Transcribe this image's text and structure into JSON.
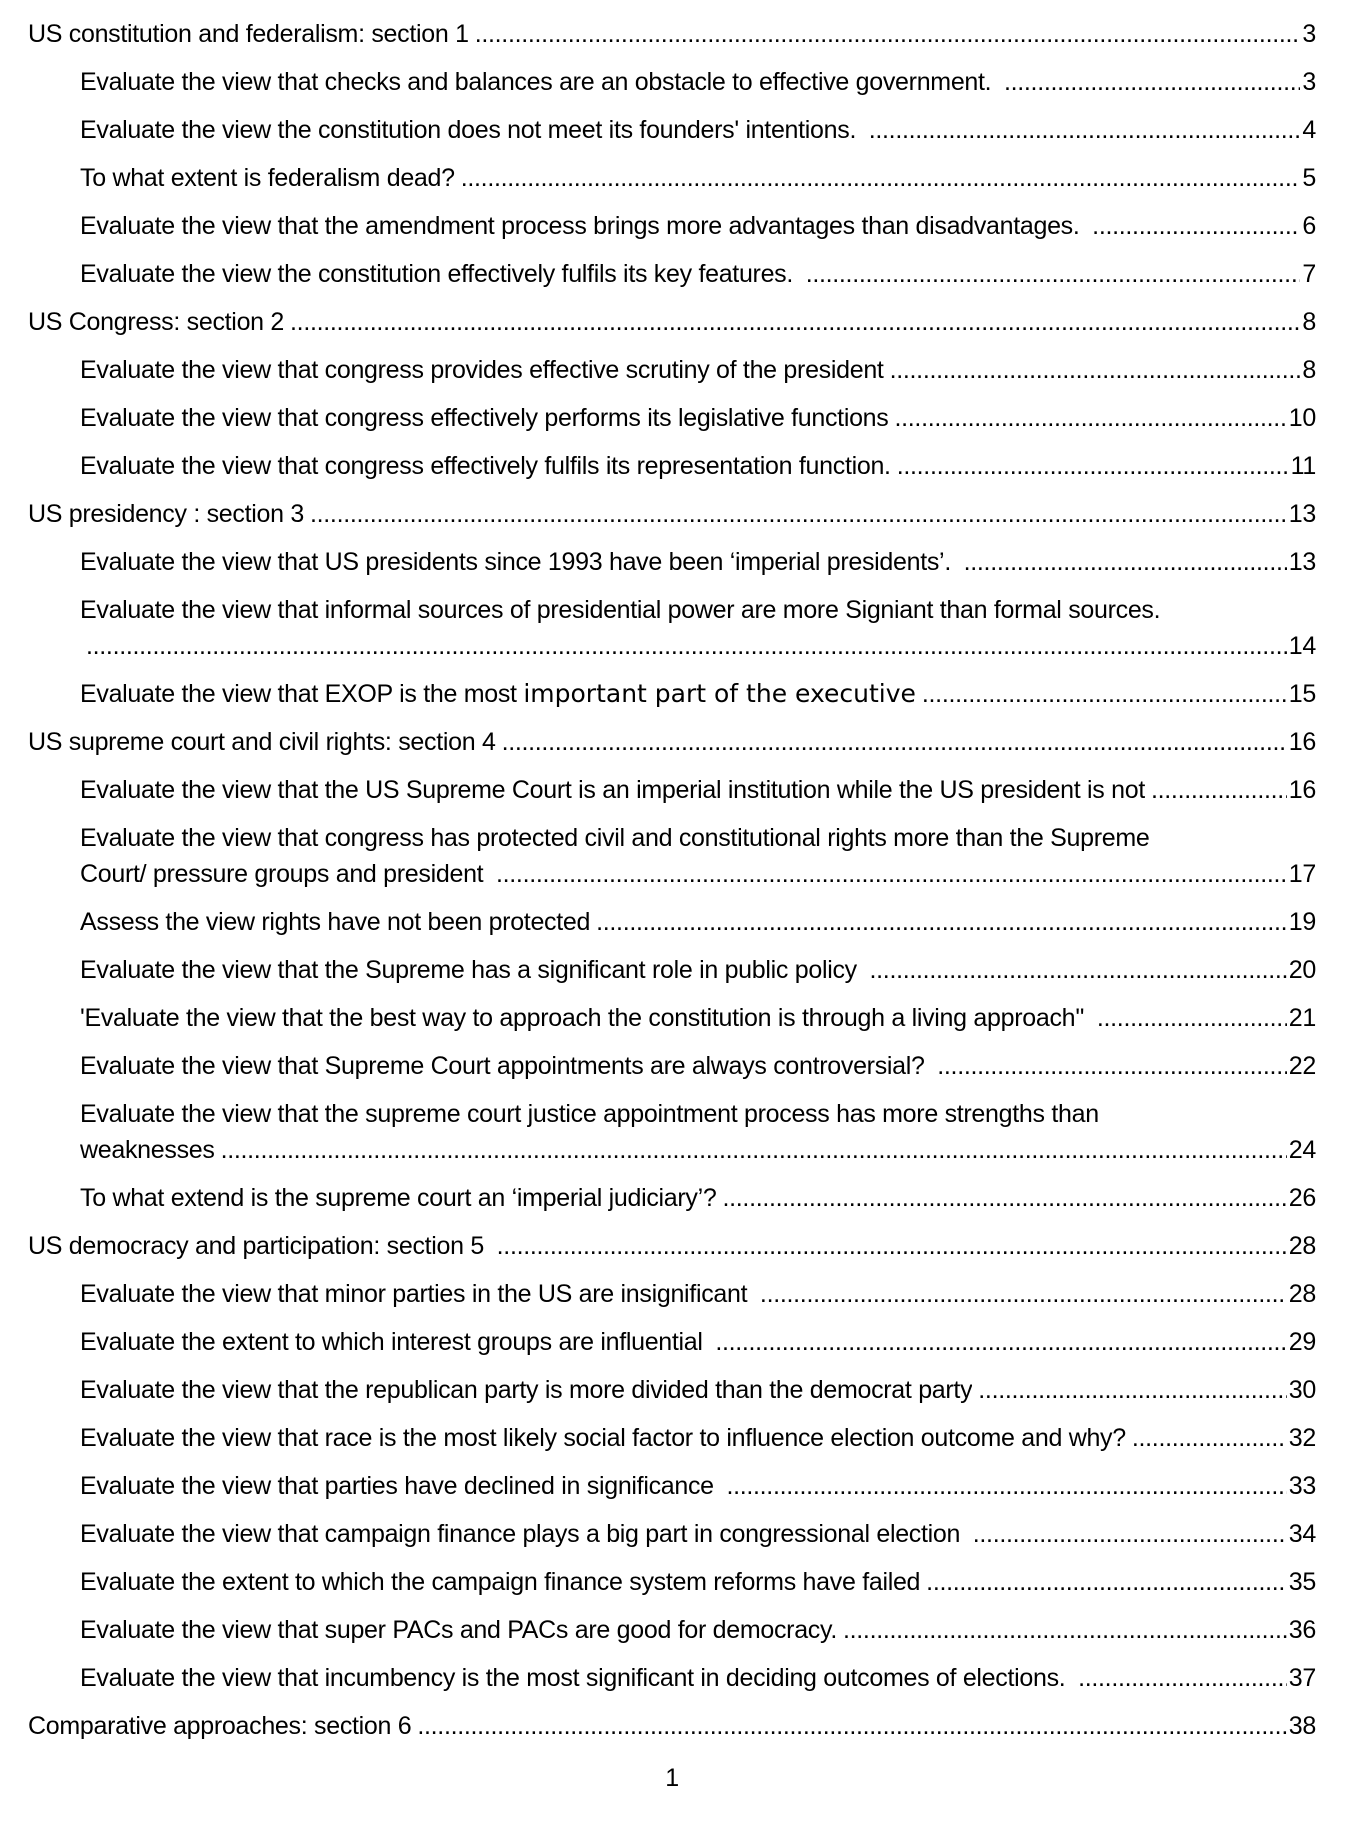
{
  "page": {
    "number": "1",
    "background_color": "#ffffff",
    "text_color": "#000000"
  },
  "toc": {
    "entries": [
      {
        "level": 1,
        "lines": [
          {
            "text": "US constitution and federalism: section 1",
            "leader": true,
            "page": "3"
          }
        ]
      },
      {
        "level": 2,
        "lines": [
          {
            "text": "Evaluate the view that checks and balances are an obstacle to effective government. ",
            "leader": true,
            "page": "3"
          }
        ]
      },
      {
        "level": 2,
        "lines": [
          {
            "text": "Evaluate the view the constitution does not meet its founders' intentions. ",
            "leader": true,
            "page": "4"
          }
        ]
      },
      {
        "level": 2,
        "lines": [
          {
            "text": "To what extent is federalism dead?",
            "leader": true,
            "page": "5"
          }
        ]
      },
      {
        "level": 2,
        "lines": [
          {
            "text": "Evaluate the view that the amendment process brings more advantages than disadvantages. ",
            "leader": true,
            "page": "6"
          }
        ]
      },
      {
        "level": 2,
        "lines": [
          {
            "text": "Evaluate the view the constitution effectively fulfils its key features. ",
            "leader": true,
            "page": "7"
          }
        ]
      },
      {
        "level": 1,
        "lines": [
          {
            "text": "US Congress: section 2",
            "leader": true,
            "page": "8"
          }
        ]
      },
      {
        "level": 2,
        "lines": [
          {
            "text": "Evaluate the view that congress provides effective scrutiny of the president",
            "leader": true,
            "page": "8"
          }
        ]
      },
      {
        "level": 2,
        "lines": [
          {
            "text": "Evaluate the view that congress effectively performs its legislative functions",
            "leader": true,
            "page": "10"
          }
        ]
      },
      {
        "level": 2,
        "lines": [
          {
            "text": "Evaluate the view that congress effectively fulfils its representation function.",
            "leader": true,
            "page": "11"
          }
        ]
      },
      {
        "level": 1,
        "lines": [
          {
            "text": "US presidency : section 3",
            "leader": true,
            "page": "13"
          }
        ]
      },
      {
        "level": 2,
        "lines": [
          {
            "text": "Evaluate the view that US presidents since 1993 have been ‘imperial presidents’. ",
            "leader": true,
            "page": "13"
          }
        ]
      },
      {
        "level": 2,
        "lines": [
          {
            "text": "Evaluate the view that informal sources of presidential power are more Signiant than formal sources.",
            "leader": false
          },
          {
            "text": "",
            "leader": true,
            "page": "14"
          }
        ]
      },
      {
        "level": 2,
        "lines": [
          {
            "text": "Evaluate the view that EXOP is the most ",
            "alt": "important part of the executive",
            "leader": true,
            "page": "15"
          }
        ]
      },
      {
        "level": 1,
        "lines": [
          {
            "text": "US supreme court and civil rights: section 4",
            "leader": true,
            "page": "16"
          }
        ]
      },
      {
        "level": 2,
        "lines": [
          {
            "text": "Evaluate the view that the US Supreme Court is an imperial institution while the US president is not",
            "leader": true,
            "page": "16"
          }
        ]
      },
      {
        "level": 2,
        "lines": [
          {
            "text": "Evaluate the view that congress has protected civil and constitutional rights more than the Supreme",
            "leader": false
          },
          {
            "text": "Court/ pressure groups and president ",
            "leader": true,
            "page": "17"
          }
        ]
      },
      {
        "level": 2,
        "lines": [
          {
            "text": "Assess the view rights have not been protected",
            "leader": true,
            "page": "19"
          }
        ]
      },
      {
        "level": 2,
        "lines": [
          {
            "text": "Evaluate the view that the Supreme has a significant role in public policy ",
            "leader": true,
            "page": "20"
          }
        ]
      },
      {
        "level": 2,
        "lines": [
          {
            "text": "'Evaluate the view that the best way to approach the constitution is through a living approach'' ",
            "leader": true,
            "page": "21"
          }
        ]
      },
      {
        "level": 2,
        "lines": [
          {
            "text": "Evaluate the view that Supreme Court appointments are always controversial? ",
            "leader": true,
            "page": "22"
          }
        ]
      },
      {
        "level": 2,
        "lines": [
          {
            "text": "Evaluate the view that the supreme court justice appointment process has more strengths than",
            "leader": false
          },
          {
            "text": "weaknesses",
            "leader": true,
            "page": "24"
          }
        ]
      },
      {
        "level": 2,
        "lines": [
          {
            "text": "To what extend is the supreme court an ‘imperial judiciary’?",
            "leader": true,
            "page": "26"
          }
        ]
      },
      {
        "level": 1,
        "lines": [
          {
            "text": "US democracy and participation: section 5 ",
            "leader": true,
            "page": "28"
          }
        ]
      },
      {
        "level": 2,
        "lines": [
          {
            "text": "Evaluate the view that minor parties in the US are insignificant ",
            "leader": true,
            "page": "28"
          }
        ]
      },
      {
        "level": 2,
        "lines": [
          {
            "text": "Evaluate the extent to which interest groups are influential ",
            "leader": true,
            "page": "29"
          }
        ]
      },
      {
        "level": 2,
        "lines": [
          {
            "text": "Evaluate the view that the republican party is more divided than the democrat party",
            "leader": true,
            "page": "30"
          }
        ]
      },
      {
        "level": 2,
        "lines": [
          {
            "text": "Evaluate the view that race is the most likely social factor to influence election outcome and why?",
            "leader": true,
            "page": "32"
          }
        ]
      },
      {
        "level": 2,
        "lines": [
          {
            "text": "Evaluate the view that parties have declined in significance ",
            "leader": true,
            "page": "33"
          }
        ]
      },
      {
        "level": 2,
        "lines": [
          {
            "text": "Evaluate the view that campaign finance plays a big part in congressional election ",
            "leader": true,
            "page": "34"
          }
        ]
      },
      {
        "level": 2,
        "lines": [
          {
            "text": "Evaluate the extent to which the campaign finance system reforms have failed",
            "leader": true,
            "page": "35"
          }
        ]
      },
      {
        "level": 2,
        "lines": [
          {
            "text": "Evaluate the view that super PACs and PACs are good for democracy.",
            "leader": true,
            "page": "36"
          }
        ]
      },
      {
        "level": 2,
        "lines": [
          {
            "text": "Evaluate the view that incumbency is the most significant in deciding outcomes of elections. ",
            "leader": true,
            "page": "37"
          }
        ]
      },
      {
        "level": 1,
        "lines": [
          {
            "text": "Comparative approaches: section 6",
            "leader": true,
            "page": "38"
          }
        ]
      }
    ]
  }
}
